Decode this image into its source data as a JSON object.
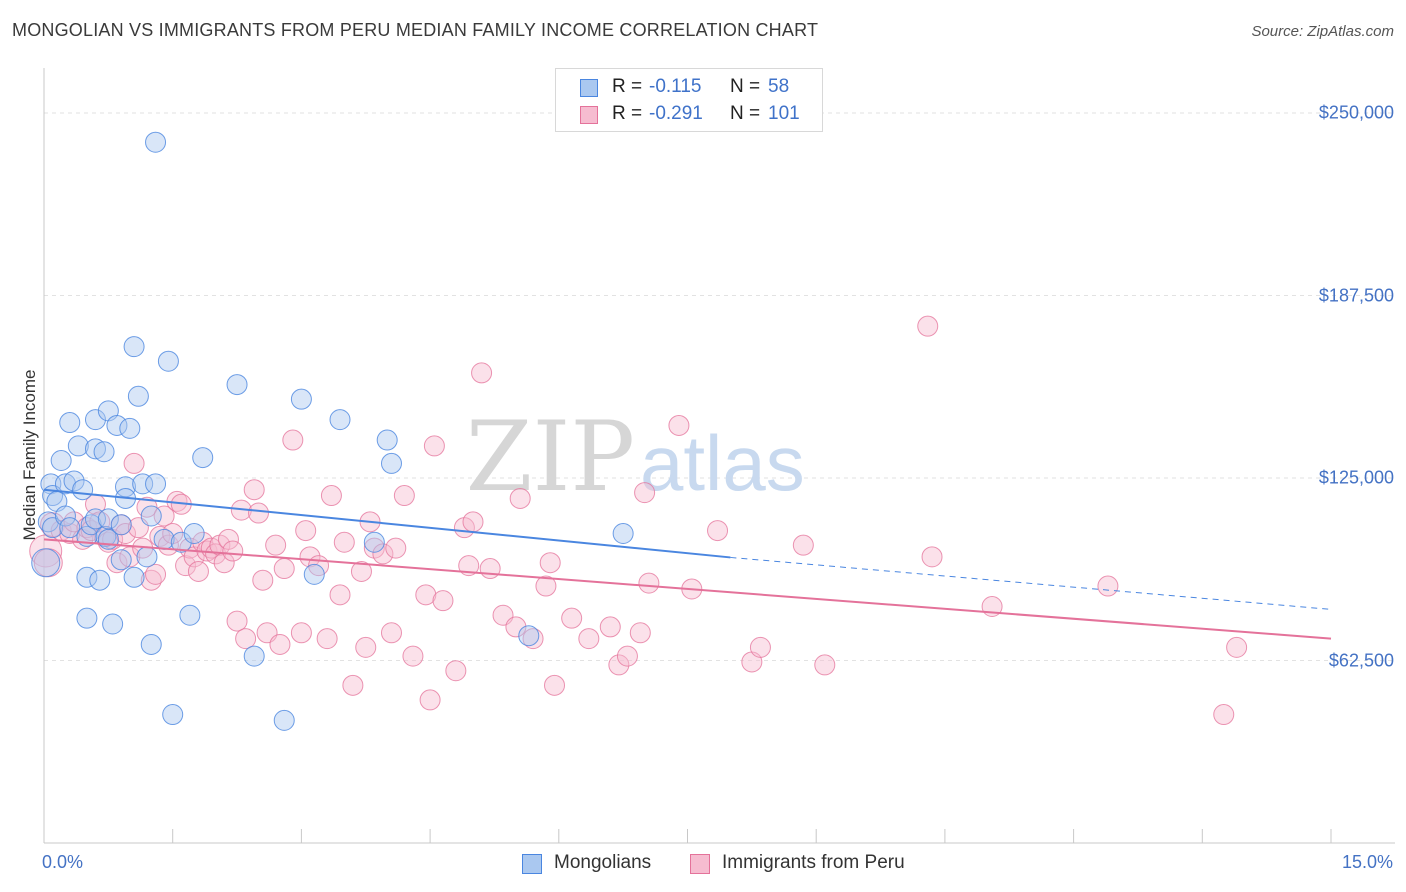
{
  "title": "MONGOLIAN VS IMMIGRANTS FROM PERU MEDIAN FAMILY INCOME CORRELATION CHART",
  "source": "Source: ZipAtlas.com",
  "colors": {
    "blue": "#4a86e0",
    "blue_fill": "#aac8f0",
    "pink": "#e4729a",
    "pink_fill": "#f6bcd0",
    "tick_text": "#4472c4"
  },
  "legend": {
    "rows": [
      {
        "r_label": "R =",
        "r_value": "-0.115",
        "n_label": "N =",
        "n_value": "58"
      },
      {
        "r_label": "R =",
        "r_value": "-0.291",
        "n_label": "N =",
        "n_value": "101"
      }
    ]
  },
  "bottom_legend": {
    "series1": "Mongolians",
    "series2": "Immigrants from Peru"
  },
  "watermark": {
    "part1": "ZIP",
    "part2": "atlas"
  },
  "chart_data": {
    "type": "scatter",
    "title": "MONGOLIAN VS IMMIGRANTS FROM PERU MEDIAN FAMILY INCOME CORRELATION CHART",
    "xlabel": "",
    "ylabel": "Median Family Income",
    "xlim": [
      0,
      15
    ],
    "ylim": [
      0,
      262000
    ],
    "x_tick_labels": [
      "0.0%",
      "15.0%"
    ],
    "y_ticks": [
      62500,
      125000,
      187500,
      250000
    ],
    "y_tick_labels": [
      "$62,500",
      "$125,000",
      "$187,500",
      "$250,000"
    ],
    "grid": true,
    "series": [
      {
        "name": "Mongolians",
        "color": "#4a86e0",
        "r": -0.115,
        "n": 58,
        "trend": {
          "x0": 0,
          "y0": 121000,
          "x1": 8.0,
          "y1": 97800,
          "dash_x1": 15.0,
          "dash_y1": 80000
        },
        "points": [
          [
            0.02,
            96000,
            14
          ],
          [
            0.05,
            110000,
            10
          ],
          [
            0.1,
            108000,
            10
          ],
          [
            0.08,
            123000,
            10
          ],
          [
            0.1,
            119000,
            10
          ],
          [
            0.15,
            117000,
            10
          ],
          [
            0.2,
            131000,
            10
          ],
          [
            0.25,
            112000,
            10
          ],
          [
            0.25,
            123000,
            10
          ],
          [
            0.3,
            108000,
            10
          ],
          [
            0.3,
            144000,
            10
          ],
          [
            0.35,
            124000,
            10
          ],
          [
            0.4,
            136000,
            10
          ],
          [
            0.45,
            121000,
            10
          ],
          [
            0.5,
            105000,
            10
          ],
          [
            0.5,
            77000,
            10
          ],
          [
            0.5,
            91000,
            10
          ],
          [
            0.55,
            109000,
            10
          ],
          [
            0.6,
            111000,
            10
          ],
          [
            0.6,
            135000,
            10
          ],
          [
            0.6,
            145000,
            10
          ],
          [
            0.65,
            90000,
            10
          ],
          [
            0.7,
            134000,
            10
          ],
          [
            0.72,
            105000,
            10
          ],
          [
            0.75,
            148000,
            10
          ],
          [
            0.75,
            104000,
            10
          ],
          [
            0.75,
            111000,
            10
          ],
          [
            0.8,
            75000,
            10
          ],
          [
            0.85,
            143000,
            10
          ],
          [
            0.9,
            97000,
            10
          ],
          [
            0.9,
            109000,
            10
          ],
          [
            0.95,
            122000,
            10
          ],
          [
            0.95,
            118000,
            10
          ],
          [
            1.0,
            142000,
            10
          ],
          [
            1.05,
            170000,
            10
          ],
          [
            1.05,
            91000,
            10
          ],
          [
            1.1,
            153000,
            10
          ],
          [
            1.15,
            123000,
            10
          ],
          [
            1.2,
            98000,
            10
          ],
          [
            1.25,
            112000,
            10
          ],
          [
            1.25,
            68000,
            10
          ],
          [
            1.3,
            123000,
            10
          ],
          [
            1.3,
            240000,
            10
          ],
          [
            1.4,
            104000,
            10
          ],
          [
            1.45,
            165000,
            10
          ],
          [
            1.5,
            44000,
            10
          ],
          [
            1.6,
            103000,
            10
          ],
          [
            1.7,
            78000,
            10
          ],
          [
            1.75,
            106000,
            10
          ],
          [
            1.85,
            132000,
            10
          ],
          [
            2.25,
            157000,
            10
          ],
          [
            2.45,
            64000,
            10
          ],
          [
            2.8,
            42000,
            10
          ],
          [
            3.0,
            152000,
            10
          ],
          [
            3.15,
            92000,
            10
          ],
          [
            3.45,
            145000,
            10
          ],
          [
            3.85,
            103000,
            10
          ],
          [
            4.0,
            138000,
            10
          ],
          [
            4.05,
            130000,
            10
          ],
          [
            5.65,
            71000,
            10
          ],
          [
            6.75,
            106000,
            10
          ]
        ]
      },
      {
        "name": "Immigrants from Peru",
        "color": "#e4729a",
        "r": -0.291,
        "n": 101,
        "trend": {
          "x0": 0,
          "y0": 104000,
          "x1": 15.0,
          "y1": 70000
        },
        "points": [
          [
            0.02,
            100000,
            16
          ],
          [
            0.05,
            96000,
            14
          ],
          [
            0.1,
            109000,
            12
          ],
          [
            0.2,
            107000,
            10
          ],
          [
            0.3,
            106000,
            10
          ],
          [
            0.35,
            110000,
            10
          ],
          [
            0.45,
            104000,
            10
          ],
          [
            0.5,
            108000,
            10
          ],
          [
            0.55,
            107000,
            10
          ],
          [
            0.6,
            116000,
            10
          ],
          [
            0.65,
            110000,
            10
          ],
          [
            0.7,
            105000,
            10
          ],
          [
            0.75,
            103000,
            10
          ],
          [
            0.8,
            104000,
            10
          ],
          [
            0.85,
            96000,
            10
          ],
          [
            0.9,
            109000,
            10
          ],
          [
            0.95,
            106000,
            10
          ],
          [
            1.0,
            98000,
            10
          ],
          [
            1.05,
            130000,
            10
          ],
          [
            1.1,
            108000,
            10
          ],
          [
            1.15,
            101000,
            10
          ],
          [
            1.2,
            115000,
            10
          ],
          [
            1.25,
            90000,
            10
          ],
          [
            1.3,
            92000,
            10
          ],
          [
            1.35,
            105000,
            10
          ],
          [
            1.4,
            112000,
            10
          ],
          [
            1.45,
            102000,
            10
          ],
          [
            1.5,
            106000,
            10
          ],
          [
            1.55,
            117000,
            10
          ],
          [
            1.6,
            116000,
            10
          ],
          [
            1.65,
            95000,
            10
          ],
          [
            1.7,
            101000,
            10
          ],
          [
            1.75,
            98000,
            10
          ],
          [
            1.8,
            93000,
            10
          ],
          [
            1.85,
            103000,
            10
          ],
          [
            1.9,
            100000,
            10
          ],
          [
            1.95,
            101000,
            10
          ],
          [
            2.0,
            99000,
            10
          ],
          [
            2.05,
            102000,
            10
          ],
          [
            2.1,
            96000,
            10
          ],
          [
            2.15,
            104000,
            10
          ],
          [
            2.2,
            100000,
            10
          ],
          [
            2.25,
            76000,
            10
          ],
          [
            2.3,
            114000,
            10
          ],
          [
            2.35,
            70000,
            10
          ],
          [
            2.45,
            121000,
            10
          ],
          [
            2.5,
            113000,
            10
          ],
          [
            2.55,
            90000,
            10
          ],
          [
            2.6,
            72000,
            10
          ],
          [
            2.7,
            102000,
            10
          ],
          [
            2.75,
            68000,
            10
          ],
          [
            2.8,
            94000,
            10
          ],
          [
            2.9,
            138000,
            10
          ],
          [
            3.0,
            72000,
            10
          ],
          [
            3.05,
            107000,
            10
          ],
          [
            3.1,
            98000,
            10
          ],
          [
            3.2,
            95000,
            10
          ],
          [
            3.3,
            70000,
            10
          ],
          [
            3.35,
            119000,
            10
          ],
          [
            3.45,
            85000,
            10
          ],
          [
            3.5,
            103000,
            10
          ],
          [
            3.6,
            54000,
            10
          ],
          [
            3.7,
            93000,
            10
          ],
          [
            3.75,
            67000,
            10
          ],
          [
            3.8,
            110000,
            10
          ],
          [
            3.85,
            101000,
            10
          ],
          [
            3.95,
            99000,
            10
          ],
          [
            4.05,
            72000,
            10
          ],
          [
            4.1,
            101000,
            10
          ],
          [
            4.2,
            119000,
            10
          ],
          [
            4.3,
            64000,
            10
          ],
          [
            4.45,
            85000,
            10
          ],
          [
            4.5,
            49000,
            10
          ],
          [
            4.55,
            136000,
            10
          ],
          [
            4.65,
            83000,
            10
          ],
          [
            4.8,
            59000,
            10
          ],
          [
            4.9,
            108000,
            10
          ],
          [
            4.95,
            95000,
            10
          ],
          [
            5.0,
            110000,
            10
          ],
          [
            5.1,
            161000,
            10
          ],
          [
            5.2,
            94000,
            10
          ],
          [
            5.35,
            78000,
            10
          ],
          [
            5.5,
            74000,
            10
          ],
          [
            5.55,
            118000,
            10
          ],
          [
            5.7,
            70000,
            10
          ],
          [
            5.85,
            88000,
            10
          ],
          [
            5.9,
            96000,
            10
          ],
          [
            5.95,
            54000,
            10
          ],
          [
            6.15,
            77000,
            10
          ],
          [
            6.35,
            70000,
            10
          ],
          [
            6.6,
            74000,
            10
          ],
          [
            6.7,
            61000,
            10
          ],
          [
            6.8,
            64000,
            10
          ],
          [
            6.95,
            72000,
            10
          ],
          [
            7.0,
            120000,
            10
          ],
          [
            7.05,
            89000,
            10
          ],
          [
            7.4,
            143000,
            10
          ],
          [
            7.55,
            87000,
            10
          ],
          [
            7.85,
            107000,
            10
          ],
          [
            8.25,
            62000,
            10
          ],
          [
            8.35,
            67000,
            10
          ],
          [
            8.85,
            102000,
            10
          ],
          [
            9.1,
            61000,
            10
          ],
          [
            10.35,
            98000,
            10
          ],
          [
            10.3,
            177000,
            10
          ],
          [
            11.05,
            81000,
            10
          ],
          [
            12.4,
            88000,
            10
          ],
          [
            13.75,
            44000,
            10
          ],
          [
            13.9,
            67000,
            10
          ]
        ]
      }
    ]
  }
}
